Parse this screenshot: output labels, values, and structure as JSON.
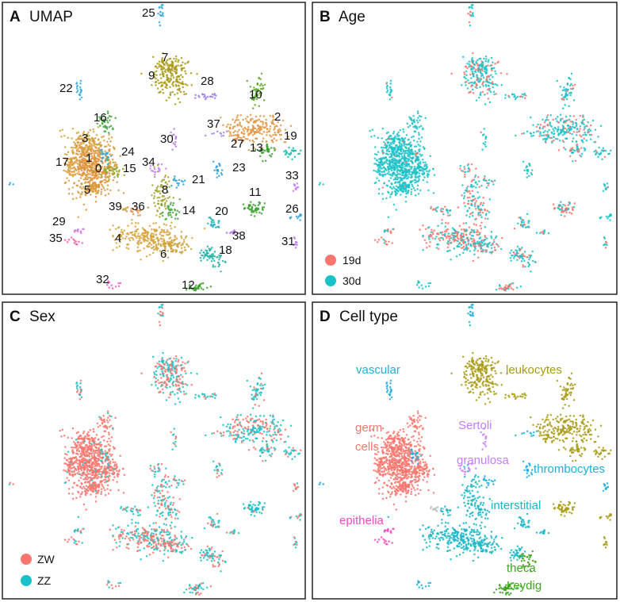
{
  "chart_data": [
    {
      "type": "scatter",
      "panel_letter": "A",
      "title": "UMAP",
      "color_by": "cluster",
      "cluster_labels": [
        "0",
        "1",
        "2",
        "3",
        "4",
        "5",
        "6",
        "7",
        "8",
        "9",
        "10",
        "11",
        "12",
        "13",
        "14",
        "15",
        "16",
        "17",
        "18",
        "19",
        "20",
        "21",
        "22",
        "23",
        "24",
        "25",
        "26",
        "27",
        "28",
        "29",
        "30",
        "31",
        "32",
        "33",
        "34",
        "35",
        "36",
        "37",
        "38",
        "39"
      ]
    },
    {
      "type": "scatter",
      "panel_letter": "B",
      "title": "Age",
      "color_by": "age",
      "legend": [
        {
          "label": "19d",
          "color": "#F8766D"
        },
        {
          "label": "30d",
          "color": "#19C2C8"
        }
      ],
      "legend_position": "bottom-left"
    },
    {
      "type": "scatter",
      "panel_letter": "C",
      "title": "Sex",
      "color_by": "sex",
      "legend": [
        {
          "label": "ZW",
          "color": "#F8766D"
        },
        {
          "label": "ZZ",
          "color": "#19C2C8"
        }
      ],
      "legend_position": "bottom-left"
    },
    {
      "type": "scatter",
      "panel_letter": "D",
      "title": "Cell type",
      "color_by": "cell_type",
      "cell_types": [
        {
          "label": "vascular",
          "color": "#20AEDC"
        },
        {
          "label": "leukocytes",
          "color": "#A89A14"
        },
        {
          "label": "Sertoli",
          "color": "#C77CFF"
        },
        {
          "label": "germ",
          "color": "#F8766D"
        },
        {
          "label": "cells",
          "color": "#F8766D"
        },
        {
          "label": "granulosa",
          "color": "#C77CFF"
        },
        {
          "label": "thrombocytes",
          "color": "#20AEDC"
        },
        {
          "label": "epithelia",
          "color": "#EE4CC0"
        },
        {
          "label": "interstitial",
          "color": "#19B6C6"
        },
        {
          "label": "theca",
          "color": "#3DA31C"
        },
        {
          "label": "Leydig",
          "color": "#3DA31C"
        }
      ]
    }
  ]
}
